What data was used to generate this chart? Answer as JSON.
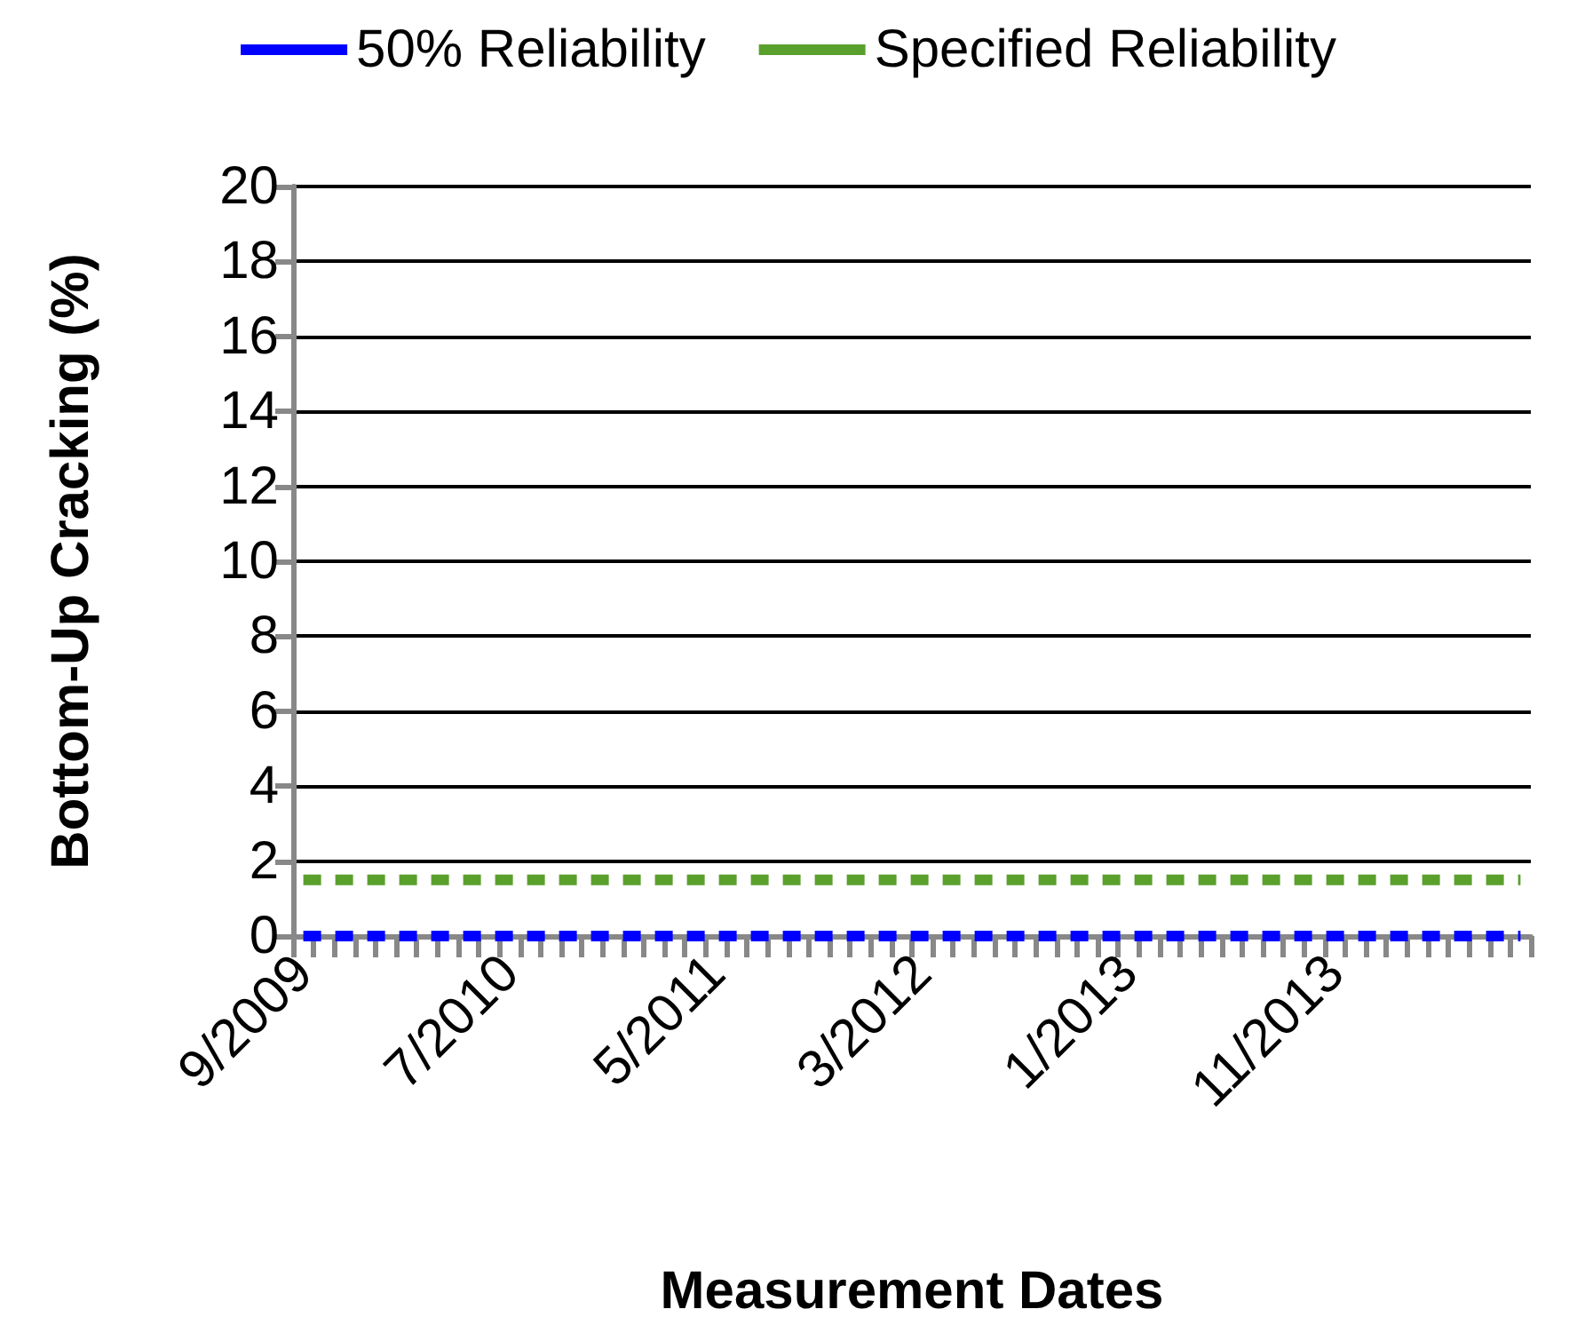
{
  "chart_data": {
    "type": "line",
    "xlabel": "Measurement Dates",
    "ylabel": "Bottom-Up Cracking (%)",
    "categories": [
      "9/2009",
      null,
      null,
      null,
      null,
      null,
      null,
      null,
      null,
      null,
      "7/2010",
      null,
      null,
      null,
      null,
      null,
      null,
      null,
      null,
      null,
      "5/2011",
      null,
      null,
      null,
      null,
      null,
      null,
      null,
      null,
      null,
      "3/2012",
      null,
      null,
      null,
      null,
      null,
      null,
      null,
      null,
      null,
      "1/2013",
      null,
      null,
      null,
      null,
      null,
      null,
      null,
      null,
      null,
      "11/2013",
      null,
      null,
      null,
      null,
      null,
      null,
      null,
      null,
      null
    ],
    "series": [
      {
        "name": "50% Reliability",
        "color": "#0000ff",
        "values": [
          0,
          0,
          0,
          0,
          0,
          0,
          0,
          0,
          0,
          0,
          0,
          0,
          0,
          0,
          0,
          0,
          0,
          0,
          0,
          0,
          0,
          0,
          0,
          0,
          0,
          0,
          0,
          0,
          0,
          0,
          0,
          0,
          0,
          0,
          0,
          0,
          0,
          0,
          0,
          0,
          0,
          0,
          0,
          0,
          0,
          0,
          0,
          0,
          0,
          0,
          0,
          0,
          0,
          0,
          0,
          0,
          0,
          0,
          0,
          0
        ]
      },
      {
        "name": "Specified Reliability",
        "color": "#5aa02c",
        "values": [
          1.5,
          1.5,
          1.5,
          1.5,
          1.5,
          1.5,
          1.5,
          1.5,
          1.5,
          1.5,
          1.5,
          1.5,
          1.5,
          1.5,
          1.5,
          1.5,
          1.5,
          1.5,
          1.5,
          1.5,
          1.5,
          1.5,
          1.5,
          1.5,
          1.5,
          1.5,
          1.5,
          1.5,
          1.5,
          1.5,
          1.5,
          1.5,
          1.5,
          1.5,
          1.5,
          1.5,
          1.5,
          1.5,
          1.5,
          1.5,
          1.5,
          1.5,
          1.5,
          1.5,
          1.5,
          1.5,
          1.5,
          1.5,
          1.5,
          1.5,
          1.5,
          1.5,
          1.5,
          1.5,
          1.5,
          1.5,
          1.5,
          1.5,
          1.5,
          1.5
        ]
      }
    ],
    "ylim": [
      0,
      20
    ],
    "yticks": [
      0,
      2,
      4,
      6,
      8,
      10,
      12,
      14,
      16,
      18,
      20
    ],
    "grid": "y",
    "legend": "top",
    "marker": "none",
    "line_style": "dashed"
  }
}
